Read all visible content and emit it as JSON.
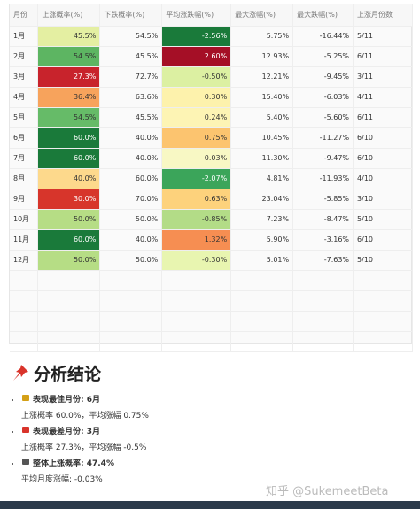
{
  "table": {
    "header": [
      "月份",
      "上涨概率(%)",
      "下跌概率(%)",
      "平均涨跌幅(%)",
      "最大涨幅(%)",
      "最大跌幅(%)",
      "上涨月份数"
    ],
    "rows": [
      [
        "1月",
        "45.5%",
        "54.5%",
        "-2.56%",
        "5.75%",
        "-16.44%",
        "5/11"
      ],
      [
        "2月",
        "54.5%",
        "45.5%",
        "2.60%",
        "12.93%",
        "-5.25%",
        "6/11"
      ],
      [
        "3月",
        "27.3%",
        "72.7%",
        "-0.50%",
        "12.21%",
        "-9.45%",
        "3/11"
      ],
      [
        "4月",
        "36.4%",
        "63.6%",
        "0.30%",
        "15.40%",
        "-6.03%",
        "4/11"
      ],
      [
        "5月",
        "54.5%",
        "45.5%",
        "0.24%",
        "5.40%",
        "-5.60%",
        "6/11"
      ],
      [
        "6月",
        "60.0%",
        "40.0%",
        "0.75%",
        "10.45%",
        "-11.27%",
        "6/10"
      ],
      [
        "7月",
        "60.0%",
        "40.0%",
        "0.03%",
        "11.30%",
        "-9.47%",
        "6/10"
      ],
      [
        "8月",
        "40.0%",
        "60.0%",
        "-2.07%",
        "4.81%",
        "-11.93%",
        "4/10"
      ],
      [
        "9月",
        "30.0%",
        "70.0%",
        "0.63%",
        "23.04%",
        "-5.85%",
        "3/10"
      ],
      [
        "10月",
        "50.0%",
        "50.0%",
        "-0.85%",
        "7.23%",
        "-8.47%",
        "5/10"
      ],
      [
        "11月",
        "60.0%",
        "40.0%",
        "1.32%",
        "5.90%",
        "-3.16%",
        "6/10"
      ],
      [
        "12月",
        "50.0%",
        "50.0%",
        "-0.30%",
        "5.01%",
        "-7.63%",
        "5/10"
      ]
    ]
  },
  "analysis": {
    "title": "分析结论",
    "items": [
      {
        "label": "表现最佳月份: 6月",
        "detail": "上涨概率 60.0%，平均涨幅 0.75%"
      },
      {
        "label": "表现最差月份: 3月",
        "detail": "上涨概率 27.3%，平均涨幅 -0.5%"
      },
      {
        "label": "整体上涨概率: 47.4%",
        "detail": "平均月度涨幅: -0.03%"
      }
    ]
  },
  "watermark": "知乎 @SukemeetBeta"
}
